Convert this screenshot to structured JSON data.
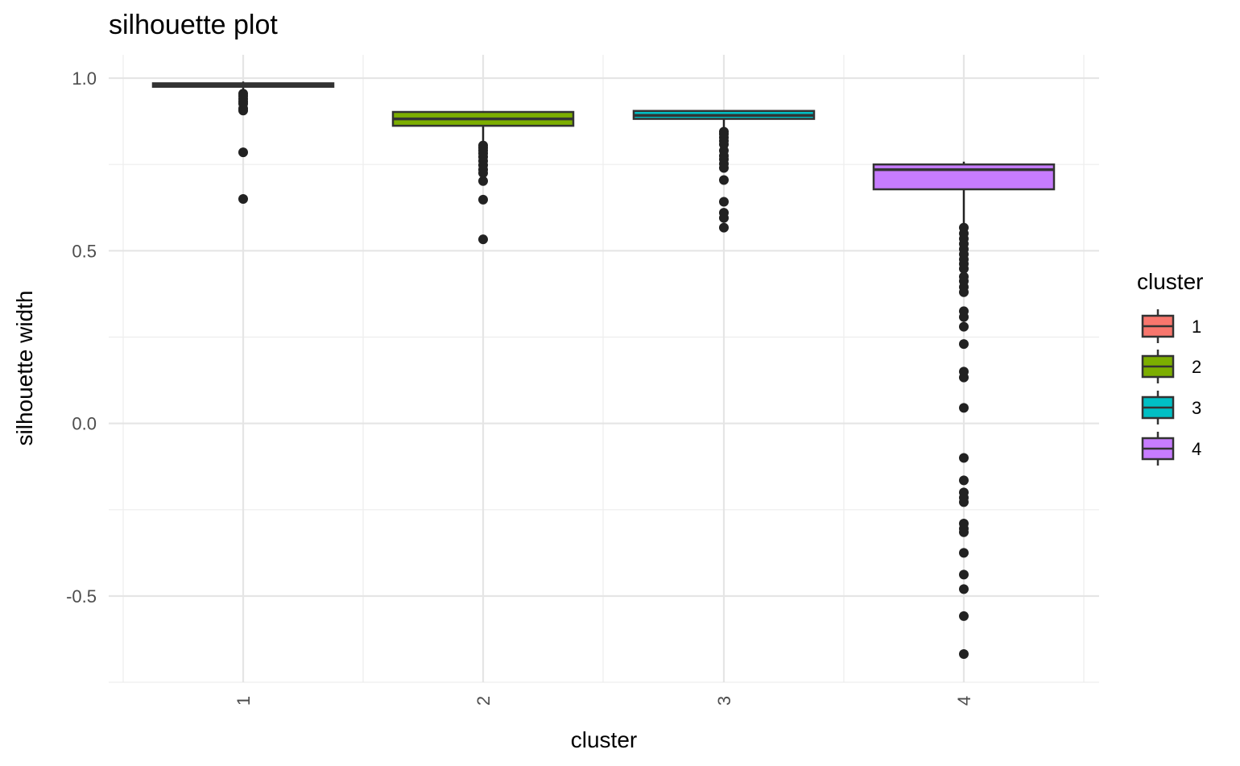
{
  "chart_data": {
    "type": "boxplot",
    "title": "silhouette plot",
    "xlabel": "cluster",
    "ylabel": "silhouette width",
    "ylim": [
      -0.75,
      1.065
    ],
    "y_ticks": [
      -0.5,
      0.0,
      0.5,
      1.0
    ],
    "y_tick_labels": [
      "-0.5",
      "0.0",
      "0.5",
      "1.0"
    ],
    "categories": [
      "1",
      "2",
      "3",
      "4"
    ],
    "grid": true,
    "legend": {
      "title": "cluster",
      "position": "right",
      "labels": [
        "1",
        "2",
        "3",
        "4"
      ]
    },
    "colors": [
      "#F8766D",
      "#7CAE00",
      "#00BFC4",
      "#C77CFF"
    ],
    "series": [
      {
        "name": "1",
        "q1": 0.975,
        "median": 0.98,
        "q3": 0.985,
        "whisker_low": 0.96,
        "whisker_high": 0.99,
        "outliers": [
          0.955,
          0.948,
          0.94,
          0.932,
          0.926,
          0.912,
          0.906,
          0.785,
          0.65
        ]
      },
      {
        "name": "2",
        "q1": 0.862,
        "median": 0.882,
        "q3": 0.902,
        "whisker_low": 0.808,
        "whisker_high": 0.904,
        "outliers": [
          0.805,
          0.798,
          0.79,
          0.782,
          0.772,
          0.76,
          0.748,
          0.735,
          0.725,
          0.702,
          0.648,
          0.533
        ]
      },
      {
        "name": "3",
        "q1": 0.882,
        "median": 0.892,
        "q3": 0.905,
        "whisker_low": 0.848,
        "whisker_high": 0.907,
        "outliers": [
          0.845,
          0.838,
          0.828,
          0.818,
          0.808,
          0.79,
          0.775,
          0.765,
          0.752,
          0.74,
          0.705,
          0.642,
          0.61,
          0.595,
          0.567
        ]
      },
      {
        "name": "4",
        "q1": 0.678,
        "median": 0.735,
        "q3": 0.75,
        "whisker_low": 0.57,
        "whisker_high": 0.758,
        "outliers": [
          0.567,
          0.55,
          0.535,
          0.52,
          0.505,
          0.49,
          0.475,
          0.462,
          0.448,
          0.425,
          0.412,
          0.395,
          0.38,
          0.325,
          0.308,
          0.28,
          0.23,
          0.15,
          0.133,
          0.045,
          -0.1,
          -0.165,
          -0.2,
          -0.215,
          -0.228,
          -0.29,
          -0.305,
          -0.315,
          -0.375,
          -0.438,
          -0.48,
          -0.558,
          -0.668
        ]
      }
    ]
  }
}
